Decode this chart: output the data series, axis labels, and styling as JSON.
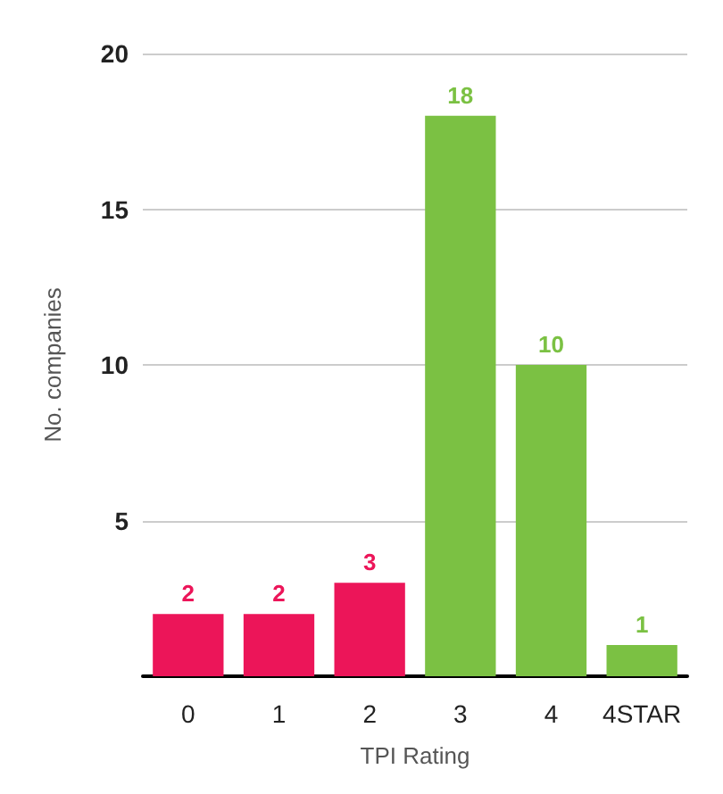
{
  "chart_data": {
    "type": "bar",
    "xlabel": "TPI Rating",
    "ylabel": "No. companies",
    "categories": [
      "0",
      "1",
      "2",
      "3",
      "4",
      "4STAR"
    ],
    "values": [
      2,
      2,
      3,
      18,
      10,
      1
    ],
    "colors": [
      "#ec1559",
      "#ec1559",
      "#ec1559",
      "#7bc143",
      "#7bc143",
      "#7bc143"
    ],
    "ylim": [
      0,
      20
    ],
    "yticks": [
      {
        "value": 0,
        "label": null
      },
      5,
      10,
      15,
      20
    ],
    "grid": "y",
    "data_labels": true
  }
}
